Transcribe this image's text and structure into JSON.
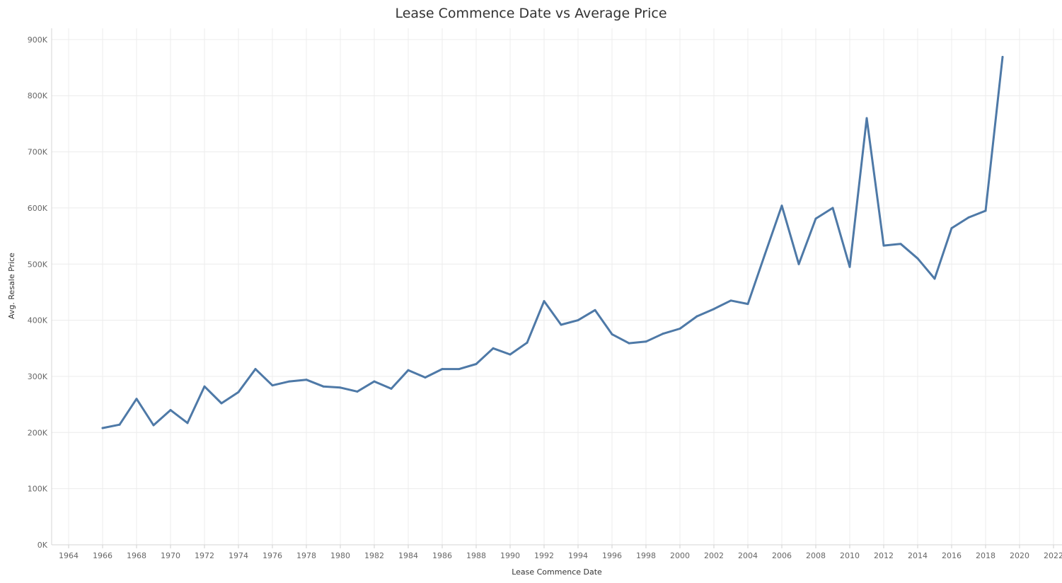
{
  "chart_data": {
    "type": "line",
    "title": "Lease Commence Date vs Average Price",
    "xlabel": "Lease Commence Date",
    "ylabel": "Avg. Resale Price",
    "xlim": [
      1963,
      2022.5
    ],
    "ylim": [
      0,
      920000
    ],
    "x_ticks": [
      1964,
      1966,
      1968,
      1970,
      1972,
      1974,
      1976,
      1978,
      1980,
      1982,
      1984,
      1986,
      1988,
      1990,
      1992,
      1994,
      1996,
      1998,
      2000,
      2002,
      2004,
      2006,
      2008,
      2010,
      2012,
      2014,
      2016,
      2018,
      2020,
      2022
    ],
    "y_ticks": [
      0,
      100000,
      200000,
      300000,
      400000,
      500000,
      600000,
      700000,
      800000,
      900000
    ],
    "y_tick_labels": [
      "0K",
      "100K",
      "200K",
      "300K",
      "400K",
      "500K",
      "600K",
      "700K",
      "800K",
      "900K"
    ],
    "grid": true,
    "line_color": "#4e79a7",
    "series": [
      {
        "x": [
          1966,
          1967,
          1968,
          1969,
          1970,
          1971,
          1972,
          1973,
          1974,
          1975,
          1976,
          1977,
          1978,
          1979,
          1980,
          1981,
          1982,
          1983,
          1984,
          1985,
          1986,
          1987,
          1988,
          1989,
          1990,
          1991,
          1992,
          1993,
          1994,
          1995,
          1996,
          1997,
          1998,
          1999,
          2000,
          2001,
          2002,
          2003,
          2004,
          2005,
          2006,
          2007,
          2008,
          2009,
          2010,
          2011,
          2012,
          2013,
          2014,
          2015,
          2016,
          2017,
          2018,
          2019
        ],
        "values": [
          208000,
          214000,
          260000,
          213000,
          240000,
          217000,
          282000,
          252000,
          272000,
          313000,
          284000,
          291000,
          294000,
          282000,
          280000,
          273000,
          291000,
          278000,
          311000,
          298000,
          313000,
          313000,
          322000,
          350000,
          339000,
          360000,
          434000,
          392000,
          400000,
          418000,
          375000,
          359000,
          362000,
          376000,
          385000,
          407000,
          420000,
          435000,
          429000,
          517000,
          604000,
          500000,
          581000,
          600000,
          495000,
          760000,
          533000,
          536000,
          510000,
          474000,
          564000,
          583000,
          595000,
          869000
        ]
      }
    ]
  }
}
